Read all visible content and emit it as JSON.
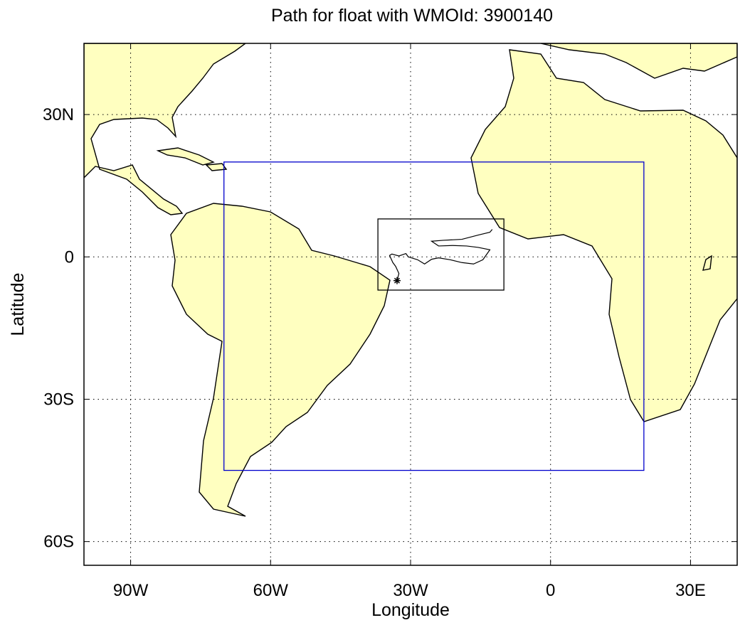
{
  "chart_data": {
    "type": "map",
    "title": "Path for float with WMOId: 3900140",
    "x_label": "Longitude",
    "y_label": "Latitude",
    "xlim": [
      -100,
      40
    ],
    "ylim": [
      -65,
      45
    ],
    "xticks": [
      {
        "value": -90,
        "label": "90W"
      },
      {
        "value": -60,
        "label": "60W"
      },
      {
        "value": -30,
        "label": "30W"
      },
      0,
      {
        "value": 30,
        "label": "30E"
      }
    ],
    "yticks": [
      {
        "value": 30,
        "label": "30N"
      },
      0,
      {
        "value": -30,
        "label": "30S"
      },
      {
        "value": -60,
        "label": "60S"
      }
    ],
    "grid": true,
    "land_color": "#ffffc0",
    "regions": [
      {
        "color": "#0000cc",
        "lon": [
          -70,
          20
        ],
        "lat": [
          -45,
          20
        ]
      },
      {
        "color": "#000000",
        "lon": [
          -37,
          -10
        ],
        "lat": [
          -7,
          8
        ]
      }
    ],
    "series": [
      {
        "color": "#000000",
        "x": [
          -32.9,
          -32.5,
          -33.2,
          -33.8,
          -34.5,
          -34.0,
          -32.5,
          -31.0,
          -30.5,
          -28.5,
          -27.0,
          -25.5,
          -24.0,
          -21.5,
          -19.0,
          -16.5,
          -14.5,
          -13.0,
          -15.5,
          -18.0,
          -21.0,
          -24.0,
          -25.5,
          -23.0,
          -19.0,
          -15.5,
          -13.0,
          -12.5
        ],
        "values": [
          -5.0,
          -3.5,
          -2.0,
          -1.2,
          0.3,
          0.6,
          0.2,
          0.7,
          0.0,
          -0.6,
          -1.5,
          -0.5,
          -0.2,
          -0.6,
          -1.2,
          -1.5,
          -0.6,
          1.5,
          2.0,
          2.3,
          2.4,
          2.3,
          3.3,
          3.5,
          3.7,
          4.6,
          5.2,
          5.8
        ]
      }
    ]
  }
}
